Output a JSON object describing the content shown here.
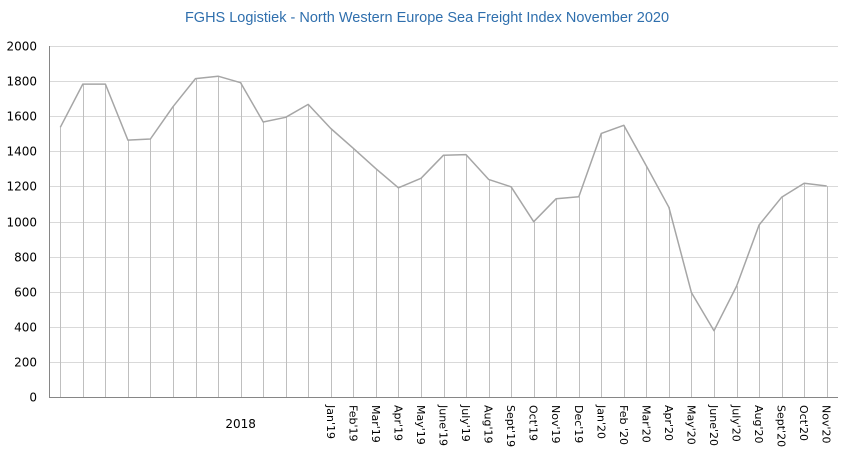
{
  "chart_data": {
    "type": "line",
    "title": "FGHS Logistiek - North  Western Europe Sea Freight Index November  2020",
    "xlabel": "",
    "ylabel": "",
    "ylim": [
      0,
      2000
    ],
    "yticks": [
      0,
      200,
      400,
      600,
      800,
      1000,
      1200,
      1400,
      1600,
      1800,
      2000
    ],
    "grid": true,
    "drop_lines": true,
    "legend": "none",
    "group_label": {
      "text": "2018",
      "category_index": 8
    },
    "categories": [
      "",
      "",
      "",
      "",
      "",
      "",
      "",
      "",
      "",
      "",
      "",
      "",
      "Jan'19",
      "Feb'19",
      "Mar'19",
      "Apr'19",
      "May'19",
      "June'19",
      "July'19",
      "Aug'19",
      "Sept'19",
      "Oct'19",
      "Nov'19",
      "Dec'19",
      "Jan'20",
      "Feb '20",
      "Mar'20",
      "Apr'20",
      "May'20",
      "June'20",
      "July'20",
      "Aug'20",
      "Sept'20",
      "Oct'20",
      "Nov'20"
    ],
    "series": [
      {
        "name": "Sea Freight Index",
        "color": "#a6a6a6",
        "values": [
          1537,
          1783,
          1783,
          1464,
          1470,
          1654,
          1814,
          1828,
          1791,
          1567,
          1594,
          1667,
          1530,
          1417,
          1301,
          1192,
          1246,
          1378,
          1381,
          1240,
          1198,
          999,
          1130,
          1141,
          1502,
          1548,
          1316,
          1081,
          594,
          378,
          632,
          980,
          1138,
          1218,
          1202
        ]
      }
    ]
  }
}
